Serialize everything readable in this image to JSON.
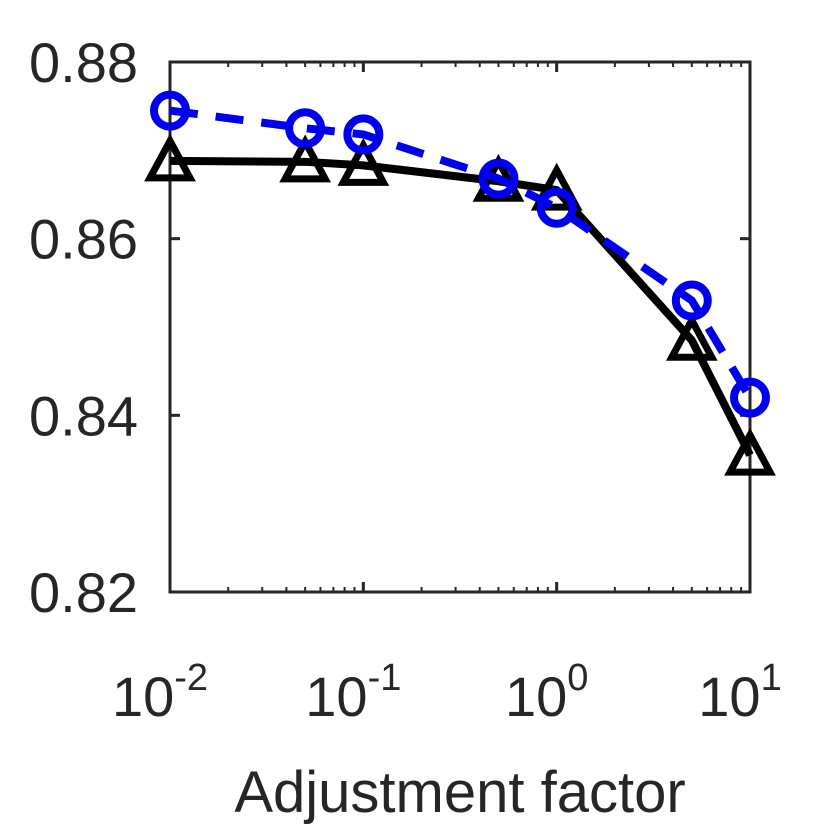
{
  "chart_data": {
    "type": "line",
    "xlabel": "Adjustment factor",
    "ylabel": "",
    "xscale": "log",
    "xlim": [
      0.01,
      10
    ],
    "ylim": [
      0.82,
      0.88
    ],
    "yticks": [
      "0.82",
      "0.84",
      "0.86",
      "0.88"
    ],
    "xticks": [
      {
        "value": 0.01,
        "base": "10",
        "exp": "-2"
      },
      {
        "value": 0.1,
        "base": "10",
        "exp": "-1"
      },
      {
        "value": 1,
        "base": "10",
        "exp": "0"
      },
      {
        "value": 10,
        "base": "10",
        "exp": "1"
      }
    ],
    "grid": false,
    "x": [
      0.01,
      0.05,
      0.1,
      0.5,
      1,
      5,
      10
    ],
    "series": [
      {
        "style": "solid",
        "marker": "triangle",
        "color": "#000000",
        "values": [
          0.8688,
          0.8687,
          0.8683,
          0.8665,
          0.8655,
          0.8485,
          0.8355
        ]
      },
      {
        "style": "dashed",
        "marker": "circle",
        "color": "#0000ee",
        "values": [
          0.8745,
          0.8725,
          0.8718,
          0.8668,
          0.8635,
          0.853,
          0.842
        ]
      }
    ]
  }
}
